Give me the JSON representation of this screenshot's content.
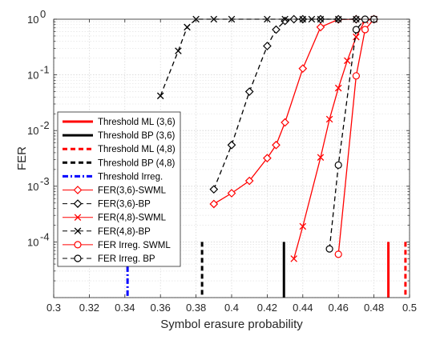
{
  "chart_data": {
    "type": "line",
    "xlabel": "Symbol erasure probability",
    "ylabel": "FER",
    "xlim": [
      0.3,
      0.5
    ],
    "ylim": [
      1e-05,
      1
    ],
    "yscale": "log",
    "grid": true,
    "legend_position": "bottom-left",
    "x_ticks": [
      {
        "v": 0.3,
        "label": "0.3"
      },
      {
        "v": 0.32,
        "label": "0.32"
      },
      {
        "v": 0.34,
        "label": "0.34"
      },
      {
        "v": 0.36,
        "label": "0.36"
      },
      {
        "v": 0.38,
        "label": "0.38"
      },
      {
        "v": 0.4,
        "label": "0.4"
      },
      {
        "v": 0.42,
        "label": "0.42"
      },
      {
        "v": 0.44,
        "label": "0.44"
      },
      {
        "v": 0.46,
        "label": "0.46"
      },
      {
        "v": 0.48,
        "label": "0.48"
      },
      {
        "v": 0.5,
        "label": "0.5"
      }
    ],
    "y_ticks": [
      {
        "v": 1,
        "base": "10",
        "exp": "0"
      },
      {
        "v": 0.1,
        "base": "10",
        "exp": "-1"
      },
      {
        "v": 0.01,
        "base": "10",
        "exp": "-2"
      },
      {
        "v": 0.001,
        "base": "10",
        "exp": "-3"
      },
      {
        "v": 0.0001,
        "base": "10",
        "exp": "-4"
      }
    ],
    "thresholds": [
      {
        "name": "Threshold ML (3,6)",
        "x": 0.4881,
        "color": "#ff0000",
        "dash": "solid",
        "y_top": 0.0001
      },
      {
        "name": "Threshold BP (3,6)",
        "x": 0.4294,
        "color": "#000000",
        "dash": "solid",
        "y_top": 0.0001
      },
      {
        "name": "Threshold ML (4,8)",
        "x": 0.4977,
        "color": "#ff0000",
        "dash": "dashed",
        "y_top": 0.0001
      },
      {
        "name": "Threshold BP (4,8)",
        "x": 0.3834,
        "color": "#000000",
        "dash": "dashed",
        "y_top": 0.0001
      },
      {
        "name": "Threshold Irreg.",
        "x": 0.3415,
        "color": "#0000ff",
        "dash": "dashdot",
        "y_top": 6e-05
      }
    ],
    "series": [
      {
        "name": "FER(3,6)-SWML",
        "color": "#ff0000",
        "dash": "solid",
        "marker": "diamond",
        "x": [
          0.39,
          0.4,
          0.41,
          0.42,
          0.425,
          0.43,
          0.44,
          0.45,
          0.46,
          0.47,
          0.48
        ],
        "y": [
          0.00048,
          0.00075,
          0.00125,
          0.0032,
          0.0055,
          0.014,
          0.13,
          0.72,
          0.99,
          1,
          1
        ]
      },
      {
        "name": "FER(3,6)-BP",
        "color": "#000000",
        "dash": "dashed",
        "marker": "diamond",
        "x": [
          0.39,
          0.4,
          0.41,
          0.42,
          0.425,
          0.43,
          0.435,
          0.44,
          0.45,
          0.46,
          0.47,
          0.48
        ],
        "y": [
          0.00088,
          0.0055,
          0.05,
          0.33,
          0.65,
          0.93,
          1,
          1,
          1,
          1,
          1,
          1
        ]
      },
      {
        "name": "FER(4,8)-SWML",
        "color": "#ff0000",
        "dash": "solid",
        "marker": "x",
        "x": [
          0.435,
          0.44,
          0.45,
          0.455,
          0.46,
          0.465,
          0.47,
          0.475,
          0.48
        ],
        "y": [
          5e-05,
          0.00019,
          0.0033,
          0.016,
          0.058,
          0.18,
          0.48,
          0.95,
          1
        ]
      },
      {
        "name": "FER(4,8)-BP",
        "color": "#000000",
        "dash": "dashed",
        "marker": "x",
        "x": [
          0.36,
          0.37,
          0.375,
          0.38,
          0.39,
          0.4,
          0.42,
          0.43,
          0.44,
          0.445,
          0.45,
          0.46,
          0.47,
          0.48
        ],
        "y": [
          0.042,
          0.27,
          0.72,
          1,
          1,
          1,
          1,
          1,
          1,
          1,
          1,
          1,
          1,
          1
        ]
      },
      {
        "name": "FER Irreg. SWML",
        "color": "#ff0000",
        "dash": "solid",
        "marker": "circle",
        "x": [
          0.46,
          0.47,
          0.475,
          0.48
        ],
        "y": [
          6e-05,
          0.096,
          0.65,
          1
        ]
      },
      {
        "name": "FER Irreg. BP",
        "color": "#000000",
        "dash": "dashed",
        "marker": "circle",
        "x": [
          0.455,
          0.46,
          0.47,
          0.475,
          0.48
        ],
        "y": [
          7.5e-05,
          0.0024,
          0.65,
          1,
          1
        ]
      }
    ],
    "legend": [
      {
        "label": "Threshold ML (3,6)",
        "color": "#ff0000",
        "dash": "solid",
        "marker": "none",
        "width": 3
      },
      {
        "label": "Threshold BP (3,6)",
        "color": "#000000",
        "dash": "solid",
        "marker": "none",
        "width": 3
      },
      {
        "label": "Threshold ML (4,8)",
        "color": "#ff0000",
        "dash": "dashed",
        "marker": "none",
        "width": 3
      },
      {
        "label": "Threshold BP (4,8)",
        "color": "#000000",
        "dash": "dashed",
        "marker": "none",
        "width": 3
      },
      {
        "label": "Threshold Irreg.",
        "color": "#0000ff",
        "dash": "dashdot",
        "marker": "none",
        "width": 3
      },
      {
        "label": "FER(3,6)-SWML",
        "color": "#ff0000",
        "dash": "solid",
        "marker": "diamond",
        "width": 1
      },
      {
        "label": "FER(3,6)-BP",
        "color": "#000000",
        "dash": "dashed",
        "marker": "diamond",
        "width": 1
      },
      {
        "label": "FER(4,8)-SWML",
        "color": "#ff0000",
        "dash": "solid",
        "marker": "x",
        "width": 1
      },
      {
        "label": "FER(4,8)-BP",
        "color": "#000000",
        "dash": "dashed",
        "marker": "x",
        "width": 1
      },
      {
        "label": "FER Irreg. SWML",
        "color": "#ff0000",
        "dash": "solid",
        "marker": "circle",
        "width": 1
      },
      {
        "label": "FER Irreg. BP",
        "color": "#000000",
        "dash": "dashed",
        "marker": "circle",
        "width": 1
      }
    ]
  }
}
